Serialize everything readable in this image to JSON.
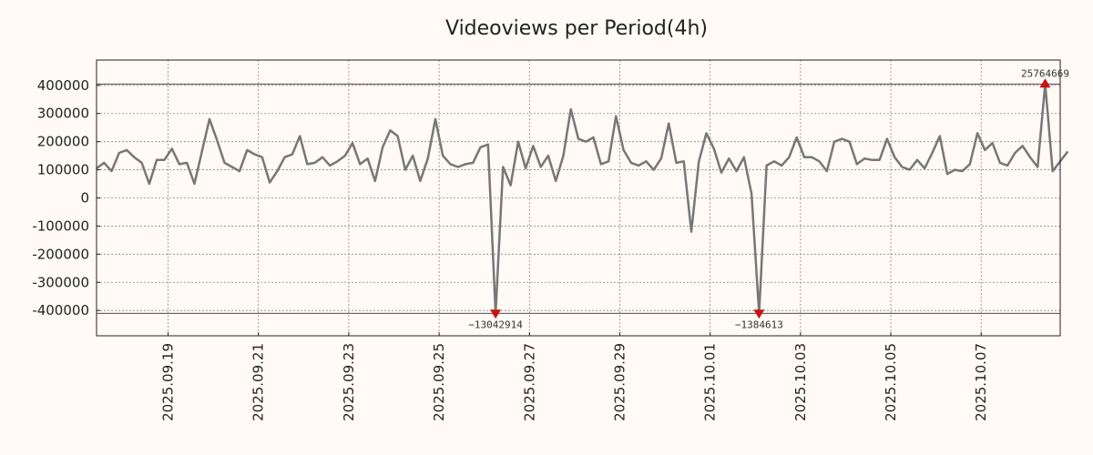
{
  "chart_data": {
    "type": "line",
    "title": "Videoviews per Period(4h)",
    "xlabel": "",
    "ylabel": "",
    "ylim": [
      -490000,
      490000
    ],
    "xlim": [
      0,
      128
    ],
    "grid": true,
    "x_ticks": [
      {
        "pos": 9.5,
        "label": "2025.09.19"
      },
      {
        "pos": 21.5,
        "label": "2025.09.21"
      },
      {
        "pos": 33.5,
        "label": "2025.09.23"
      },
      {
        "pos": 45.5,
        "label": "2025.09.25"
      },
      {
        "pos": 57.5,
        "label": "2025.09.27"
      },
      {
        "pos": 69.5,
        "label": "2025.09.29"
      },
      {
        "pos": 81.5,
        "label": "2025.10.01"
      },
      {
        "pos": 93.5,
        "label": "2025.10.03"
      },
      {
        "pos": 105.5,
        "label": "2025.10.05"
      },
      {
        "pos": 117.5,
        "label": "2025.10.07"
      }
    ],
    "y_ticks": [
      {
        "value": 400000,
        "label": "400000"
      },
      {
        "value": 300000,
        "label": "300000"
      },
      {
        "value": 200000,
        "label": "200000"
      },
      {
        "value": 100000,
        "label": "100000"
      },
      {
        "value": 0,
        "label": "0"
      },
      {
        "value": -100000,
        "label": "-100000"
      },
      {
        "value": -200000,
        "label": "-200000"
      },
      {
        "value": -300000,
        "label": "-300000"
      },
      {
        "value": -400000,
        "label": "-400000"
      }
    ],
    "clip_lines": [
      405000,
      -410000
    ],
    "series": [
      {
        "name": "Videoviews",
        "color": "#777777",
        "values": [
          105000,
          125000,
          95000,
          160000,
          170000,
          145000,
          125000,
          50000,
          135000,
          135000,
          175000,
          120000,
          125000,
          50000,
          165000,
          280000,
          205000,
          125000,
          110000,
          95000,
          170000,
          155000,
          145000,
          55000,
          95000,
          145000,
          155000,
          220000,
          120000,
          125000,
          145000,
          115000,
          130000,
          150000,
          195000,
          120000,
          140000,
          60000,
          180000,
          240000,
          220000,
          100000,
          150000,
          60000,
          140000,
          280000,
          150000,
          120000,
          110000,
          120000,
          125000,
          180000,
          190000,
          -410000,
          110000,
          45000,
          200000,
          105000,
          185000,
          110000,
          150000,
          60000,
          150000,
          315000,
          210000,
          200000,
          215000,
          120000,
          130000,
          290000,
          170000,
          125000,
          115000,
          130000,
          100000,
          140000,
          265000,
          125000,
          130000,
          -120000,
          130000,
          230000,
          175000,
          90000,
          140000,
          95000,
          145000,
          15000,
          -410000,
          115000,
          130000,
          115000,
          145000,
          215000,
          145000,
          145000,
          130000,
          95000,
          200000,
          210000,
          200000,
          120000,
          140000,
          135000,
          135000,
          210000,
          145000,
          110000,
          100000,
          135000,
          105000,
          160000,
          220000,
          85000,
          100000,
          95000,
          120000,
          230000,
          170000,
          195000,
          125000,
          115000,
          160000,
          185000,
          145000,
          110000,
          405000,
          95000,
          130000,
          165000
        ]
      }
    ],
    "markers": [
      {
        "x": 53,
        "y": -410000,
        "label": "−13042914",
        "direction": "down"
      },
      {
        "x": 88,
        "y": -410000,
        "label": "−1384613",
        "direction": "down"
      },
      {
        "x": 126,
        "y": 405000,
        "label": "25764669",
        "direction": "up"
      }
    ],
    "marker_color": "#cc1111"
  }
}
